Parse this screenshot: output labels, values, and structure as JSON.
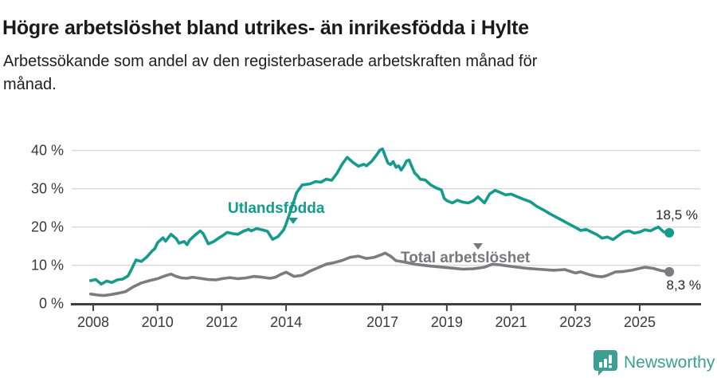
{
  "header": {
    "title": "Högre arbetslöshet bland utrikes- än inrikesfödda i Hylte",
    "subtitle_line1": "Arbetssökande som andel av den registerbaserade arbetskraften månad för",
    "subtitle_line2": "månad."
  },
  "footer": {
    "logo_text": "Newsworthy"
  },
  "colors": {
    "utlandsfodda_line": "#149b8d",
    "total_line": "#7b7b80",
    "grid": "#d9d9d9",
    "axis": "#404040",
    "logo_teal": "#3d9e94",
    "title_text": "#1a1a1a"
  },
  "chart_data": {
    "type": "line",
    "title": "Högre arbetslöshet bland utrikes- än inrikesfödda i Hylte",
    "subtitle": "Arbetssökande som andel av den registerbaserade arbetskraften månad för månad.",
    "ylabel": "",
    "xlabel": "",
    "ylim": [
      0,
      42
    ],
    "xlim": [
      2007.9,
      2026.4
    ],
    "grid": "horizontal",
    "legend_position": "inline-labels",
    "y_axis": {
      "ticks": [
        {
          "value": 0,
          "label": "0 %"
        },
        {
          "value": 10,
          "label": "10 %"
        },
        {
          "value": 20,
          "label": "20 %"
        },
        {
          "value": 30,
          "label": "30 %"
        },
        {
          "value": 40,
          "label": "40 %"
        }
      ]
    },
    "x_axis": {
      "min": 2008,
      "ticks": [
        {
          "value": 2008,
          "label": "2008"
        },
        {
          "value": 2010,
          "label": "2010"
        },
        {
          "value": 2012,
          "label": "2012"
        },
        {
          "value": 2014,
          "label": "2014"
        },
        {
          "value": 2017,
          "label": "2017"
        },
        {
          "value": 2019,
          "label": "2019"
        },
        {
          "value": 2021,
          "label": "2021"
        },
        {
          "value": 2023,
          "label": "2023"
        },
        {
          "value": 2025,
          "label": "2025"
        }
      ]
    },
    "series": [
      {
        "name": "Utlandsfödda",
        "color": "#149b8d",
        "end_label": "18,5 %",
        "end_value": 18.5,
        "points": [
          [
            2007.92,
            6.0
          ],
          [
            2008.08,
            6.3
          ],
          [
            2008.25,
            5.1
          ],
          [
            2008.42,
            5.9
          ],
          [
            2008.58,
            5.5
          ],
          [
            2008.75,
            6.2
          ],
          [
            2008.92,
            6.4
          ],
          [
            2009.08,
            7.2
          ],
          [
            2009.17,
            8.6
          ],
          [
            2009.33,
            11.4
          ],
          [
            2009.5,
            11.0
          ],
          [
            2009.67,
            12.2
          ],
          [
            2009.83,
            13.7
          ],
          [
            2009.92,
            14.4
          ],
          [
            2010.0,
            15.9
          ],
          [
            2010.17,
            17.2
          ],
          [
            2010.25,
            16.3
          ],
          [
            2010.42,
            18.1
          ],
          [
            2010.58,
            17.0
          ],
          [
            2010.67,
            15.8
          ],
          [
            2010.83,
            16.2
          ],
          [
            2010.92,
            15.4
          ],
          [
            2011.0,
            16.6
          ],
          [
            2011.17,
            17.9
          ],
          [
            2011.33,
            19.0
          ],
          [
            2011.42,
            18.3
          ],
          [
            2011.58,
            15.6
          ],
          [
            2011.75,
            16.2
          ],
          [
            2011.92,
            17.2
          ],
          [
            2012.0,
            17.6
          ],
          [
            2012.17,
            18.6
          ],
          [
            2012.33,
            18.3
          ],
          [
            2012.5,
            18.1
          ],
          [
            2012.67,
            18.9
          ],
          [
            2012.83,
            19.4
          ],
          [
            2012.92,
            19.0
          ],
          [
            2013.08,
            19.6
          ],
          [
            2013.25,
            19.3
          ],
          [
            2013.42,
            18.9
          ],
          [
            2013.58,
            16.8
          ],
          [
            2013.75,
            17.5
          ],
          [
            2013.92,
            19.2
          ],
          [
            2014.0,
            20.8
          ],
          [
            2014.17,
            25.0
          ],
          [
            2014.33,
            29.0
          ],
          [
            2014.5,
            31.0
          ],
          [
            2014.75,
            31.3
          ],
          [
            2014.92,
            31.9
          ],
          [
            2015.08,
            31.7
          ],
          [
            2015.25,
            32.5
          ],
          [
            2015.42,
            32.2
          ],
          [
            2015.58,
            34.0
          ],
          [
            2015.75,
            36.5
          ],
          [
            2015.9,
            38.2
          ],
          [
            2016.08,
            36.9
          ],
          [
            2016.25,
            35.9
          ],
          [
            2016.42,
            36.4
          ],
          [
            2016.5,
            36.0
          ],
          [
            2016.67,
            37.2
          ],
          [
            2016.83,
            39.0
          ],
          [
            2016.92,
            40.1
          ],
          [
            2017.0,
            40.4
          ],
          [
            2017.08,
            38.6
          ],
          [
            2017.17,
            36.7
          ],
          [
            2017.25,
            36.3
          ],
          [
            2017.33,
            37.1
          ],
          [
            2017.42,
            35.6
          ],
          [
            2017.5,
            36.0
          ],
          [
            2017.58,
            34.9
          ],
          [
            2017.67,
            36.0
          ],
          [
            2017.75,
            37.3
          ],
          [
            2017.83,
            37.5
          ],
          [
            2017.92,
            35.6
          ],
          [
            2018.0,
            34.1
          ],
          [
            2018.08,
            33.5
          ],
          [
            2018.17,
            32.5
          ],
          [
            2018.33,
            32.3
          ],
          [
            2018.5,
            31.0
          ],
          [
            2018.67,
            30.2
          ],
          [
            2018.83,
            29.7
          ],
          [
            2018.92,
            27.5
          ],
          [
            2019.0,
            26.9
          ],
          [
            2019.17,
            26.3
          ],
          [
            2019.33,
            27.0
          ],
          [
            2019.5,
            26.5
          ],
          [
            2019.67,
            26.3
          ],
          [
            2019.83,
            26.9
          ],
          [
            2019.97,
            27.9
          ],
          [
            2020.17,
            26.3
          ],
          [
            2020.33,
            28.6
          ],
          [
            2020.5,
            29.6
          ],
          [
            2020.67,
            29.0
          ],
          [
            2020.83,
            28.4
          ],
          [
            2021.0,
            28.6
          ],
          [
            2021.2,
            27.9
          ],
          [
            2021.4,
            27.2
          ],
          [
            2021.6,
            26.6
          ],
          [
            2021.8,
            25.4
          ],
          [
            2022.0,
            24.5
          ],
          [
            2022.2,
            23.5
          ],
          [
            2022.4,
            22.6
          ],
          [
            2022.6,
            21.7
          ],
          [
            2022.8,
            20.8
          ],
          [
            2023.0,
            19.9
          ],
          [
            2023.17,
            19.1
          ],
          [
            2023.33,
            19.4
          ],
          [
            2023.5,
            18.7
          ],
          [
            2023.67,
            18.0
          ],
          [
            2023.83,
            17.1
          ],
          [
            2024.0,
            17.4
          ],
          [
            2024.17,
            16.7
          ],
          [
            2024.33,
            17.7
          ],
          [
            2024.5,
            18.7
          ],
          [
            2024.67,
            19.0
          ],
          [
            2024.83,
            18.4
          ],
          [
            2025.0,
            18.7
          ],
          [
            2025.17,
            19.3
          ],
          [
            2025.33,
            19.0
          ],
          [
            2025.5,
            19.7
          ],
          [
            2025.58,
            20.0
          ],
          [
            2025.75,
            18.7
          ],
          [
            2025.92,
            18.5
          ]
        ]
      },
      {
        "name": "Total arbetslöshet",
        "color": "#7b7b80",
        "end_label": "8,3 %",
        "end_value": 8.3,
        "points": [
          [
            2007.92,
            2.5
          ],
          [
            2008.17,
            2.2
          ],
          [
            2008.33,
            2.1
          ],
          [
            2008.58,
            2.4
          ],
          [
            2008.83,
            2.8
          ],
          [
            2009.0,
            3.1
          ],
          [
            2009.25,
            4.4
          ],
          [
            2009.5,
            5.4
          ],
          [
            2009.75,
            6.0
          ],
          [
            2010.0,
            6.5
          ],
          [
            2010.25,
            7.3
          ],
          [
            2010.42,
            7.7
          ],
          [
            2010.58,
            7.1
          ],
          [
            2010.75,
            6.7
          ],
          [
            2010.92,
            6.6
          ],
          [
            2011.08,
            6.9
          ],
          [
            2011.33,
            6.6
          ],
          [
            2011.58,
            6.3
          ],
          [
            2011.83,
            6.2
          ],
          [
            2012.0,
            6.5
          ],
          [
            2012.25,
            6.8
          ],
          [
            2012.5,
            6.5
          ],
          [
            2012.75,
            6.7
          ],
          [
            2013.0,
            7.1
          ],
          [
            2013.25,
            6.9
          ],
          [
            2013.5,
            6.6
          ],
          [
            2013.67,
            6.9
          ],
          [
            2013.83,
            7.6
          ],
          [
            2014.0,
            8.2
          ],
          [
            2014.25,
            7.1
          ],
          [
            2014.5,
            7.4
          ],
          [
            2014.75,
            8.5
          ],
          [
            2015.0,
            9.4
          ],
          [
            2015.25,
            10.3
          ],
          [
            2015.5,
            10.7
          ],
          [
            2015.75,
            11.3
          ],
          [
            2016.0,
            12.1
          ],
          [
            2016.25,
            12.4
          ],
          [
            2016.5,
            11.8
          ],
          [
            2016.75,
            12.1
          ],
          [
            2017.0,
            12.9
          ],
          [
            2017.08,
            13.2
          ],
          [
            2017.25,
            12.4
          ],
          [
            2017.42,
            11.2
          ],
          [
            2017.58,
            11.0
          ],
          [
            2017.83,
            10.6
          ],
          [
            2018.0,
            10.3
          ],
          [
            2018.5,
            9.8
          ],
          [
            2019.0,
            9.4
          ],
          [
            2019.5,
            9.0
          ],
          [
            2019.83,
            9.1
          ],
          [
            2020.17,
            9.5
          ],
          [
            2020.42,
            10.3
          ],
          [
            2020.67,
            10.1
          ],
          [
            2021.0,
            9.7
          ],
          [
            2021.5,
            9.2
          ],
          [
            2022.0,
            8.9
          ],
          [
            2022.33,
            8.7
          ],
          [
            2022.67,
            8.9
          ],
          [
            2023.0,
            8.0
          ],
          [
            2023.17,
            8.3
          ],
          [
            2023.42,
            7.6
          ],
          [
            2023.67,
            7.1
          ],
          [
            2023.83,
            7.0
          ],
          [
            2024.0,
            7.4
          ],
          [
            2024.25,
            8.3
          ],
          [
            2024.5,
            8.4
          ],
          [
            2024.75,
            8.7
          ],
          [
            2025.0,
            9.2
          ],
          [
            2025.17,
            9.5
          ],
          [
            2025.42,
            9.2
          ],
          [
            2025.67,
            8.6
          ],
          [
            2025.92,
            8.3
          ]
        ]
      }
    ]
  }
}
